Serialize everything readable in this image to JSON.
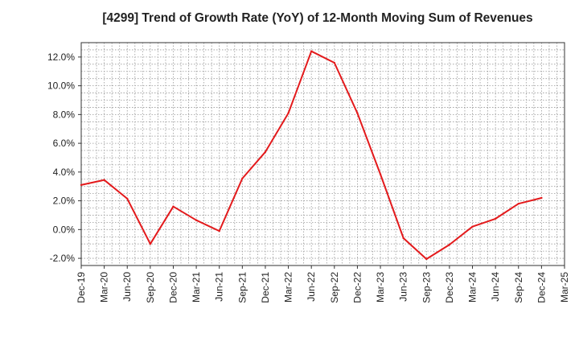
{
  "chart_data": {
    "type": "line",
    "title": "[4299]  Trend of Growth Rate (YoY) of 12-Month Moving Sum of Revenues",
    "xlabel": "",
    "ylabel": "",
    "x": [
      "Dec-19",
      "Mar-20",
      "Jun-20",
      "Sep-20",
      "Dec-20",
      "Mar-21",
      "Jun-21",
      "Sep-21",
      "Dec-21",
      "Mar-22",
      "Jun-22",
      "Sep-22",
      "Dec-22",
      "Mar-23",
      "Jun-23",
      "Sep-23",
      "Dec-23",
      "Mar-24",
      "Jun-24",
      "Sep-24",
      "Dec-24",
      "Mar-25"
    ],
    "series": [
      {
        "color": "#e31a1c",
        "values": [
          3.1,
          3.45,
          2.15,
          -1.0,
          1.6,
          0.65,
          -0.1,
          3.55,
          5.4,
          8.1,
          12.4,
          11.6,
          8.1,
          3.85,
          -0.6,
          -2.05,
          -1.05,
          0.2,
          0.75,
          1.8,
          2.2,
          null
        ]
      }
    ],
    "y_ticks": [
      "12.0%",
      "10.0%",
      "8.0%",
      "6.0%",
      "4.0%",
      "2.0%",
      "0.0%",
      "-2.0%"
    ],
    "ylim": [
      -2.5,
      13.0
    ],
    "grid": true,
    "legend": "none"
  }
}
